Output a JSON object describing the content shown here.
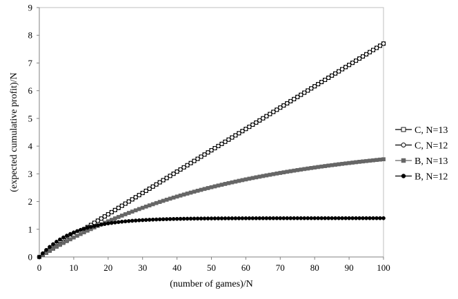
{
  "chart_data": {
    "type": "line",
    "title": "",
    "xlabel": "(number of games)/N",
    "ylabel": "(expected cumulative profit)/N",
    "xlim": [
      0,
      100
    ],
    "ylim": [
      0,
      9
    ],
    "x_ticks": [
      0,
      10,
      20,
      30,
      40,
      50,
      60,
      70,
      80,
      90,
      100
    ],
    "y_ticks": [
      0,
      1,
      2,
      3,
      4,
      5,
      6,
      7,
      8,
      9
    ],
    "grid": false,
    "legend_position": "right",
    "x_step": 1,
    "series": [
      {
        "name": "C, N=13",
        "marker": "open-square",
        "color": "#000000",
        "kind": "linear",
        "slope": 0.077
      },
      {
        "name": "C, N=12",
        "marker": "open-circle",
        "color": "#000000",
        "kind": "linear",
        "slope": 0.077
      },
      {
        "name": "B, N=13",
        "marker": "filled-square",
        "color": "#666666",
        "kind": "saturating",
        "asymptote": 4.2,
        "rate": 0.0183,
        "linear_tail": 0.0
      },
      {
        "name": "B, N=12",
        "marker": "filled-circle",
        "color": "#000000",
        "kind": "saturating",
        "asymptote": 1.4,
        "rate": 0.1
      }
    ]
  }
}
